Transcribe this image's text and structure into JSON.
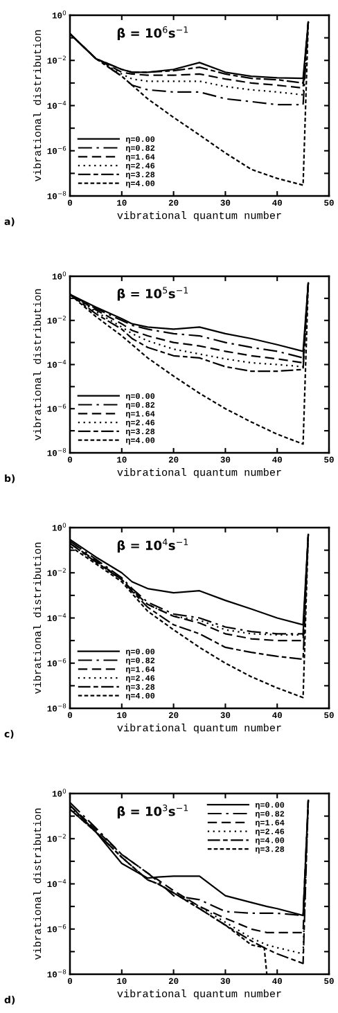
{
  "chart_data": [
    {
      "type": "line",
      "title": "β = 10$^{6}$s$^{−1}$",
      "xlabel": "vibrational quantum number",
      "ylabel": "vibrational distribution",
      "annotations": [
        "a)"
      ],
      "log": "y",
      "legend": "lower left",
      "grid": false,
      "xlim": [
        0,
        50
      ],
      "xticks": [
        0,
        10,
        20,
        30,
        40,
        50
      ],
      "ylim": [
        1e-08,
        1
      ],
      "yticks": [
        {
          "value": 1e-08,
          "label": "10$^{−8}$"
        },
        {
          "value": 1e-07,
          "label": null
        },
        {
          "value": 1e-06,
          "label": "10$^{−6}$"
        },
        {
          "value": 1e-05,
          "label": null
        },
        {
          "value": 0.0001,
          "label": "10$^{−4}$"
        },
        {
          "value": 0.001,
          "label": null
        },
        {
          "value": 0.01,
          "label": "10$^{−2}$"
        },
        {
          "value": 0.1,
          "label": null
        },
        {
          "value": 1,
          "label": "10$^{0}$"
        }
      ],
      "x": [
        0,
        5,
        10,
        12,
        15,
        20,
        25,
        30,
        35,
        40,
        45,
        46
      ],
      "series": [
        {
          "name": "η=0.00",
          "color": "#000000",
          "line_style": "solid",
          "values": [
            0.15,
            0.012,
            0.004,
            0.003,
            0.003,
            0.004,
            0.008,
            0.003,
            0.002,
            0.0017,
            0.0016,
            0.5
          ]
        },
        {
          "name": "η=0.82",
          "color": "#000000",
          "line_style": "longdashdot",
          "values": [
            0.15,
            0.012,
            0.002,
            0.0008,
            0.0005,
            0.0004,
            0.0004,
            0.0002,
            0.00015,
            0.00011,
            0.00011,
            0.5
          ]
        },
        {
          "name": "η=1.64",
          "color": "#000000",
          "line_style": "dashed",
          "values": [
            0.15,
            0.012,
            0.003,
            0.0025,
            0.0022,
            0.0022,
            0.0025,
            0.0015,
            0.001,
            0.0008,
            0.0006,
            0.5
          ]
        },
        {
          "name": "η=2.46",
          "color": "#000000",
          "line_style": "dotted",
          "values": [
            0.15,
            0.012,
            0.0025,
            0.0015,
            0.0012,
            0.0012,
            0.0012,
            0.0007,
            0.0005,
            0.0004,
            0.0003,
            0.5
          ]
        },
        {
          "name": "η=3.28",
          "color": "#000000",
          "line_style": "dashdotdot",
          "values": [
            0.15,
            0.012,
            0.004,
            0.003,
            0.003,
            0.0035,
            0.005,
            0.0025,
            0.0016,
            0.0014,
            0.001,
            0.5
          ]
        },
        {
          "name": "η=4.00",
          "color": "#000000",
          "line_style": "shortdash",
          "values": [
            0.15,
            0.012,
            0.002,
            0.0008,
            0.0002,
            3e-05,
            5e-06,
            8e-07,
            1.5e-07,
            6e-08,
            3e-08,
            0.5
          ]
        }
      ]
    },
    {
      "type": "line",
      "title": "β = 10$^{5}$s$^{−1}$",
      "xlabel": "vibrational quantum number",
      "ylabel": "vibrational distribution",
      "annotations": [
        "b)"
      ],
      "log": "y",
      "legend": "lower left",
      "grid": false,
      "xlim": [
        0,
        50
      ],
      "xticks": [
        0,
        10,
        20,
        30,
        40,
        50
      ],
      "ylim": [
        1e-08,
        1
      ],
      "yticks": [
        {
          "value": 1e-08,
          "label": "10$^{−8}$"
        },
        {
          "value": 1e-07,
          "label": null
        },
        {
          "value": 1e-06,
          "label": "10$^{−6}$"
        },
        {
          "value": 1e-05,
          "label": null
        },
        {
          "value": 0.0001,
          "label": "10$^{−4}$"
        },
        {
          "value": 0.001,
          "label": null
        },
        {
          "value": 0.01,
          "label": "10$^{−2}$"
        },
        {
          "value": 0.1,
          "label": null
        },
        {
          "value": 1,
          "label": "10$^{0}$"
        }
      ],
      "x": [
        0,
        5,
        10,
        12,
        15,
        20,
        25,
        30,
        35,
        40,
        45,
        46
      ],
      "series": [
        {
          "name": "η=0.00",
          "color": "#000000",
          "line_style": "solid",
          "values": [
            0.15,
            0.04,
            0.012,
            0.007,
            0.005,
            0.004,
            0.005,
            0.0025,
            0.0015,
            0.0008,
            0.0004,
            0.5
          ]
        },
        {
          "name": "η=0.82",
          "color": "#000000",
          "line_style": "longdashdot",
          "values": [
            0.15,
            0.035,
            0.01,
            0.006,
            0.004,
            0.0025,
            0.002,
            0.001,
            0.0006,
            0.0004,
            0.0002,
            0.5
          ]
        },
        {
          "name": "η=1.64",
          "color": "#000000",
          "line_style": "dashed",
          "values": [
            0.15,
            0.03,
            0.007,
            0.0035,
            0.002,
            0.001,
            0.0007,
            0.0004,
            0.00025,
            0.00018,
            0.00012,
            0.5
          ]
        },
        {
          "name": "η=2.46",
          "color": "#000000",
          "line_style": "dotted",
          "values": [
            0.15,
            0.025,
            0.005,
            0.0025,
            0.0012,
            0.0005,
            0.0003,
            0.00018,
            0.00012,
            0.0001,
            8e-05,
            0.5
          ]
        },
        {
          "name": "η=3.28",
          "color": "#000000",
          "line_style": "dashdotdot",
          "values": [
            0.15,
            0.02,
            0.004,
            0.0015,
            0.0006,
            0.00025,
            0.0002,
            8e-05,
            5e-05,
            5e-05,
            6e-05,
            0.5
          ]
        },
        {
          "name": "η=4.00",
          "color": "#000000",
          "line_style": "shortdash",
          "values": [
            0.15,
            0.015,
            0.002,
            0.0008,
            0.0002,
            3e-05,
            5e-06,
            1e-06,
            2.5e-07,
            7e-08,
            2.5e-08,
            0.5
          ]
        }
      ]
    },
    {
      "type": "line",
      "title": "β = 10$^{4}$s$^{−1}$",
      "xlabel": "vibrational quantum number",
      "ylabel": "vibrational distribution",
      "annotations": [
        "c)"
      ],
      "log": "y",
      "legend": "lower left",
      "grid": false,
      "xlim": [
        0,
        50
      ],
      "xticks": [
        0,
        10,
        20,
        30,
        40,
        50
      ],
      "ylim": [
        1e-08,
        1
      ],
      "yticks": [
        {
          "value": 1e-08,
          "label": "10$^{−8}$"
        },
        {
          "value": 1e-07,
          "label": null
        },
        {
          "value": 1e-06,
          "label": "10$^{−6}$"
        },
        {
          "value": 1e-05,
          "label": null
        },
        {
          "value": 0.0001,
          "label": "10$^{−4}$"
        },
        {
          "value": 0.001,
          "label": null
        },
        {
          "value": 0.01,
          "label": "10$^{−2}$"
        },
        {
          "value": 0.1,
          "label": null
        },
        {
          "value": 1,
          "label": "10$^{0}$"
        }
      ],
      "x": [
        0,
        5,
        10,
        12,
        15,
        20,
        25,
        30,
        35,
        40,
        45,
        46
      ],
      "series": [
        {
          "name": "η=0.00",
          "color": "#000000",
          "line_style": "solid",
          "values": [
            0.3,
            0.05,
            0.01,
            0.004,
            0.002,
            0.0013,
            0.0016,
            0.0006,
            0.00025,
            0.0001,
            5e-05,
            0.5
          ]
        },
        {
          "name": "η=0.82",
          "color": "#000000",
          "line_style": "longdashdot",
          "values": [
            0.25,
            0.04,
            0.006,
            0.002,
            0.0005,
            0.00015,
            0.0001,
            4e-05,
            2.5e-05,
            2e-05,
            2e-05,
            0.5
          ]
        },
        {
          "name": "η=1.64",
          "color": "#000000",
          "line_style": "dashed",
          "values": [
            0.2,
            0.035,
            0.005,
            0.0017,
            0.0004,
            0.00012,
            6e-05,
            2e-05,
            1.2e-05,
            1e-05,
            1e-05,
            0.5
          ]
        },
        {
          "name": "η=2.46",
          "color": "#000000",
          "line_style": "dotted",
          "values": [
            0.2,
            0.03,
            0.005,
            0.0017,
            0.0004,
            0.00012,
            8e-05,
            3e-05,
            2e-05,
            1.8e-05,
            1.8e-05,
            0.5
          ]
        },
        {
          "name": "η=3.28",
          "color": "#000000",
          "line_style": "dashdotdot",
          "values": [
            0.2,
            0.03,
            0.005,
            0.0015,
            0.0003,
            5e-05,
            2e-05,
            5e-06,
            3e-06,
            2e-06,
            1.5e-06,
            0.5
          ]
        },
        {
          "name": "η=4.00",
          "color": "#000000",
          "line_style": "shortdash",
          "values": [
            0.15,
            0.025,
            0.004,
            0.0012,
            0.0002,
            3e-05,
            5e-06,
            1e-06,
            2.5e-07,
            8e-08,
            3e-08,
            0.5
          ]
        }
      ]
    },
    {
      "type": "line",
      "title": "β = 10$^{3}$s$^{−1}$",
      "xlabel": "vibrational quantum number",
      "ylabel": "vibrational distribution",
      "annotations": [
        "d)"
      ],
      "log": "y",
      "legend": "top right",
      "grid": false,
      "xlim": [
        0,
        50
      ],
      "xticks": [
        0,
        10,
        20,
        30,
        40,
        50
      ],
      "ylim": [
        1e-08,
        1
      ],
      "yticks": [
        {
          "value": 1e-08,
          "label": "10$^{−8}$"
        },
        {
          "value": 1e-07,
          "label": null
        },
        {
          "value": 1e-06,
          "label": "10$^{−6}$"
        },
        {
          "value": 1e-05,
          "label": null
        },
        {
          "value": 0.0001,
          "label": "10$^{−4}$"
        },
        {
          "value": 0.001,
          "label": null
        },
        {
          "value": 0.01,
          "label": "10$^{−2}$"
        },
        {
          "value": 0.1,
          "label": null
        },
        {
          "value": 1,
          "label": "10$^{0}$"
        }
      ],
      "x": [
        0,
        5,
        10,
        15,
        17,
        20,
        25,
        30,
        35,
        38,
        40,
        45,
        46
      ],
      "series": [
        {
          "name": "η=0.00",
          "color": "#000000",
          "line_style": "solid",
          "values": [
            0.3,
            0.02,
            0.0008,
            0.00018,
            0.0002,
            0.00022,
            0.00022,
            3e-05,
            1.5e-05,
            1e-05,
            8e-06,
            4e-06,
            0.5
          ]
        },
        {
          "name": "η=0.82",
          "color": "#000000",
          "line_style": "longdashdot",
          "values": [
            0.4,
            0.03,
            0.002,
            0.0003,
            0.00013,
            3e-05,
            2e-05,
            6e-06,
            5e-06,
            5e-06,
            5e-06,
            4e-06,
            0.5
          ]
        },
        {
          "name": "η=1.64",
          "color": "#000000",
          "line_style": "dashed",
          "values": [
            0.3,
            0.025,
            0.002,
            0.0003,
            0.00015,
            5e-05,
            1e-05,
            3e-06,
            1e-06,
            7e-07,
            7e-07,
            7e-07,
            0.5
          ]
        },
        {
          "name": "η=2.46",
          "color": "#000000",
          "line_style": "dotted",
          "values": [
            0.25,
            0.02,
            0.0015,
            0.00015,
            0.0001,
            4e-05,
            1e-05,
            2e-06,
            4e-07,
            2e-07,
            1.5e-07,
            8e-08,
            0.5
          ]
        },
        {
          "name": "η=4.00",
          "color": "#000000",
          "line_style": "dashdotdot",
          "values": [
            0.2,
            0.02,
            0.0015,
            0.00015,
            0.0001,
            4e-05,
            8e-06,
            1.5e-06,
            3e-07,
            1.3e-07,
            8e-08,
            3e-08,
            0.5
          ]
        },
        {
          "name": "η=3.28",
          "color": "#000000",
          "line_style": "shortdash",
          "x": [
            0,
            5,
            10,
            15,
            17,
            20,
            25,
            30,
            35,
            37.5,
            38
          ],
          "values": [
            0.2,
            0.02,
            0.0015,
            0.00015,
            0.0001,
            4e-05,
            8e-06,
            1.5e-06,
            2e-07,
            1.5e-07,
            1e-08
          ]
        }
      ]
    }
  ]
}
